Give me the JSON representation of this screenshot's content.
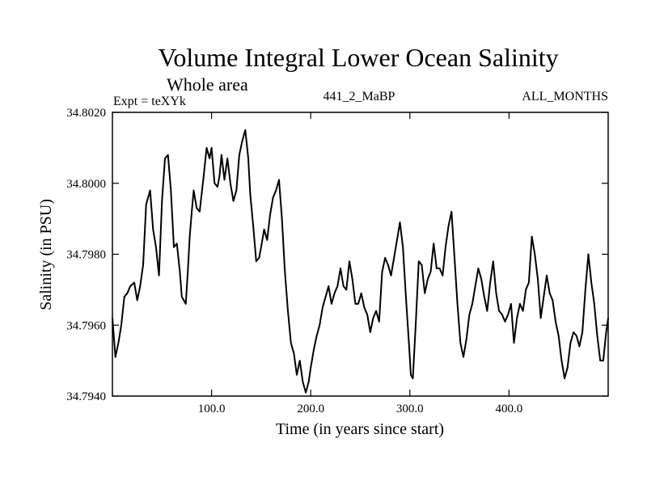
{
  "header": {
    "title": "Volume Integral Lower Ocean Salinity",
    "subtitle": "Whole area",
    "expt": "Expt = teXYk",
    "run": "441_2_MaBP",
    "months": "ALL_MONTHS"
  },
  "chart_data": {
    "type": "line",
    "xlabel": "Time (in years since start)",
    "ylabel": "Salinity (in PSU)",
    "xlim": [
      0,
      500
    ],
    "ylim": [
      34.794,
      34.802
    ],
    "xticks": [
      100,
      200,
      300,
      400
    ],
    "xtick_labels": [
      "100.0",
      "200.0",
      "300.0",
      "400.0"
    ],
    "yticks": [
      34.794,
      34.796,
      34.798,
      34.8,
      34.802
    ],
    "ytick_labels": [
      "34.7940",
      "34.7960",
      "34.7980",
      "34.8000",
      "34.8020"
    ],
    "grid": false,
    "series": [
      {
        "x": [
          0,
          3,
          6,
          9,
          12,
          15,
          18,
          22,
          25,
          28,
          31,
          34,
          38,
          41,
          44,
          47,
          50,
          53,
          56,
          59,
          62,
          65,
          68,
          70,
          72,
          74,
          76,
          78,
          80,
          82,
          85,
          88,
          92,
          95,
          98,
          100,
          103,
          106,
          108,
          110,
          113,
          116,
          119,
          122,
          125,
          128,
          131,
          134,
          137,
          139,
          142,
          145,
          148,
          150,
          153,
          156,
          159,
          162,
          165,
          168,
          171,
          174,
          177,
          180,
          183,
          186,
          189,
          192,
          195,
          198,
          200,
          203,
          206,
          209,
          212,
          215,
          218,
          221,
          224,
          227,
          230,
          233,
          236,
          239,
          242,
          245,
          248,
          251,
          254,
          257,
          260,
          263,
          266,
          269,
          272,
          275,
          278,
          281,
          284,
          287,
          290,
          293,
          296,
          299,
          301,
          303,
          306,
          309,
          312,
          315,
          318,
          321,
          324,
          327,
          330,
          333,
          336,
          339,
          342,
          345,
          348,
          351,
          354,
          357,
          360,
          363,
          366,
          369,
          372,
          375,
          378,
          381,
          384,
          387,
          390,
          393,
          396,
          399,
          402,
          405,
          408,
          411,
          414,
          417,
          420,
          423,
          426,
          429,
          432,
          435,
          438,
          441,
          444,
          447,
          450,
          453,
          456,
          459,
          462,
          465,
          468,
          471,
          474,
          477,
          480,
          483,
          486,
          489,
          492,
          495,
          498,
          500
        ],
        "y": [
          34.7962,
          34.7951,
          34.7955,
          34.796,
          34.7968,
          34.7969,
          34.7971,
          34.7972,
          34.7967,
          34.7971,
          34.7977,
          34.7994,
          34.7998,
          34.7987,
          34.7982,
          34.7974,
          34.7995,
          34.8007,
          34.8008,
          34.7998,
          34.7982,
          34.7983,
          34.7975,
          34.7968,
          34.7967,
          34.7966,
          34.7975,
          34.7985,
          34.7992,
          34.7998,
          34.7993,
          34.7992,
          34.8002,
          34.801,
          34.8007,
          34.801,
          34.8,
          34.7999,
          34.8002,
          34.8008,
          34.8001,
          34.8007,
          34.8,
          34.7995,
          34.7998,
          34.8008,
          34.8012,
          34.8015,
          34.8007,
          34.7997,
          34.7988,
          34.7978,
          34.7979,
          34.7982,
          34.7987,
          34.7984,
          34.7991,
          34.7996,
          34.7998,
          34.8001,
          34.799,
          34.7975,
          34.7964,
          34.7955,
          34.7952,
          34.7946,
          34.795,
          34.7944,
          34.7941,
          34.7944,
          34.7948,
          34.7953,
          34.7957,
          34.796,
          34.7965,
          34.7968,
          34.7971,
          34.7966,
          34.7969,
          34.7971,
          34.7976,
          34.7971,
          34.797,
          34.7978,
          34.7973,
          34.7966,
          34.7966,
          34.7969,
          34.7965,
          34.7963,
          34.7958,
          34.7962,
          34.7964,
          34.7961,
          34.7975,
          34.7979,
          34.7977,
          34.7974,
          34.7979,
          34.7984,
          34.7989,
          34.7982,
          34.7968,
          34.7955,
          34.7946,
          34.7945,
          34.7961,
          34.7978,
          34.7977,
          34.7969,
          34.7973,
          34.7975,
          34.7983,
          34.7976,
          34.7976,
          34.7974,
          34.7982,
          34.7988,
          34.7992,
          34.7979,
          34.7966,
          34.7955,
          34.7951,
          34.7956,
          34.7963,
          34.7966,
          34.7971,
          34.7976,
          34.7973,
          34.7968,
          34.7964,
          34.7972,
          34.7978,
          34.7969,
          34.7964,
          34.7963,
          34.7961,
          34.7963,
          34.7966,
          34.7955,
          34.7962,
          34.7966,
          34.7964,
          34.797,
          34.7972,
          34.7985,
          34.798,
          34.7973,
          34.7962,
          34.7968,
          34.7974,
          34.7969,
          34.7967,
          34.7961,
          34.7957,
          34.795,
          34.7945,
          34.7948,
          34.7955,
          34.7958,
          34.7957,
          34.7954,
          34.7958,
          34.797,
          34.798,
          34.7972,
          34.7966,
          34.7957,
          34.795,
          34.795,
          34.7958,
          34.7962
        ]
      }
    ]
  }
}
